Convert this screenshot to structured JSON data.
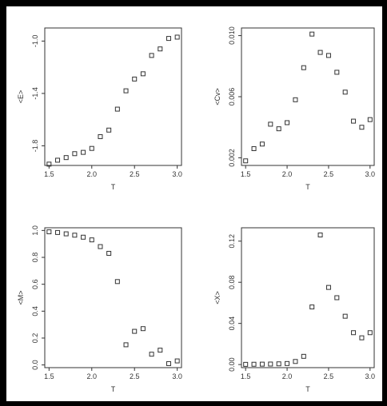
{
  "chart_data": [
    {
      "type": "scatter",
      "panel": "top-left",
      "xlabel": "T",
      "ylabel": "<E>",
      "xlim": [
        1.45,
        3.05
      ],
      "ylim": [
        -1.95,
        -0.9
      ],
      "xticks": [
        {
          "v": 1.5,
          "t": "1.5"
        },
        {
          "v": 2.0,
          "t": "2.0"
        },
        {
          "v": 2.5,
          "t": "2.5"
        },
        {
          "v": 3.0,
          "t": "3.0"
        }
      ],
      "yticks": [
        {
          "v": -1.8,
          "t": "-1.8"
        },
        {
          "v": -1.4,
          "t": "-1.4"
        },
        {
          "v": -1.0,
          "t": "-1.0"
        }
      ],
      "x": [
        1.5,
        1.6,
        1.7,
        1.8,
        1.9,
        2.0,
        2.1,
        2.2,
        2.3,
        2.4,
        2.5,
        2.6,
        2.7,
        2.8,
        2.9,
        3.0
      ],
      "y": [
        -1.94,
        -1.91,
        -1.89,
        -1.86,
        -1.85,
        -1.82,
        -1.73,
        -1.68,
        -1.52,
        -1.38,
        -1.29,
        -1.25,
        -1.11,
        -1.06,
        -0.98,
        -0.97
      ]
    },
    {
      "type": "scatter",
      "panel": "top-right",
      "xlabel": "T",
      "ylabel": "<Cv>",
      "xlim": [
        1.45,
        3.05
      ],
      "ylim": [
        0.0015,
        0.0105
      ],
      "xticks": [
        {
          "v": 1.5,
          "t": "1.5"
        },
        {
          "v": 2.0,
          "t": "2.0"
        },
        {
          "v": 2.5,
          "t": "2.5"
        },
        {
          "v": 3.0,
          "t": "3.0"
        }
      ],
      "yticks": [
        {
          "v": 0.002,
          "t": "0.002"
        },
        {
          "v": 0.006,
          "t": "0.006"
        },
        {
          "v": 0.01,
          "t": "0.010"
        }
      ],
      "x": [
        1.5,
        1.6,
        1.7,
        1.8,
        1.9,
        2.0,
        2.1,
        2.2,
        2.3,
        2.4,
        2.5,
        2.6,
        2.7,
        2.8,
        2.9,
        3.0
      ],
      "y": [
        0.0018,
        0.0026,
        0.0029,
        0.0042,
        0.0039,
        0.0043,
        0.0058,
        0.0079,
        0.0101,
        0.0089,
        0.0087,
        0.0076,
        0.0063,
        0.0044,
        0.004,
        0.0045
      ]
    },
    {
      "type": "scatter",
      "panel": "bottom-left",
      "xlabel": "T",
      "ylabel": "<M>",
      "xlim": [
        1.45,
        3.05
      ],
      "ylim": [
        -0.02,
        1.02
      ],
      "xticks": [
        {
          "v": 1.5,
          "t": "1.5"
        },
        {
          "v": 2.0,
          "t": "2.0"
        },
        {
          "v": 2.5,
          "t": "2.5"
        },
        {
          "v": 3.0,
          "t": "3.0"
        }
      ],
      "yticks": [
        {
          "v": 0.0,
          "t": "0.0"
        },
        {
          "v": 0.2,
          "t": "0.2"
        },
        {
          "v": 0.4,
          "t": "0.4"
        },
        {
          "v": 0.6,
          "t": "0.6"
        },
        {
          "v": 0.8,
          "t": "0.8"
        },
        {
          "v": 1.0,
          "t": "1.0"
        }
      ],
      "x": [
        1.5,
        1.6,
        1.7,
        1.8,
        1.9,
        2.0,
        2.1,
        2.2,
        2.3,
        2.4,
        2.5,
        2.6,
        2.7,
        2.8,
        2.9,
        3.0
      ],
      "y": [
        0.99,
        0.985,
        0.975,
        0.965,
        0.95,
        0.93,
        0.88,
        0.83,
        0.62,
        0.15,
        0.25,
        0.27,
        0.08,
        0.11,
        0.01,
        0.03
      ]
    },
    {
      "type": "scatter",
      "panel": "bottom-right",
      "xlabel": "T",
      "ylabel": "<X>",
      "xlim": [
        1.45,
        3.05
      ],
      "ylim": [
        -0.003,
        0.133
      ],
      "xticks": [
        {
          "v": 1.5,
          "t": "1.5"
        },
        {
          "v": 2.0,
          "t": "2.0"
        },
        {
          "v": 2.5,
          "t": "2.5"
        },
        {
          "v": 3.0,
          "t": "3.0"
        }
      ],
      "yticks": [
        {
          "v": 0.0,
          "t": "0.00"
        },
        {
          "v": 0.04,
          "t": "0.04"
        },
        {
          "v": 0.08,
          "t": "0.08"
        },
        {
          "v": 0.12,
          "t": "0.12"
        }
      ],
      "x": [
        1.5,
        1.6,
        1.7,
        1.8,
        1.9,
        2.0,
        2.1,
        2.2,
        2.3,
        2.4,
        2.5,
        2.6,
        2.7,
        2.8,
        2.9,
        3.0
      ],
      "y": [
        0.0002,
        0.0003,
        0.0004,
        0.0005,
        0.0007,
        0.001,
        0.003,
        0.008,
        0.056,
        0.126,
        0.075,
        0.065,
        0.047,
        0.031,
        0.026,
        0.031
      ]
    }
  ]
}
